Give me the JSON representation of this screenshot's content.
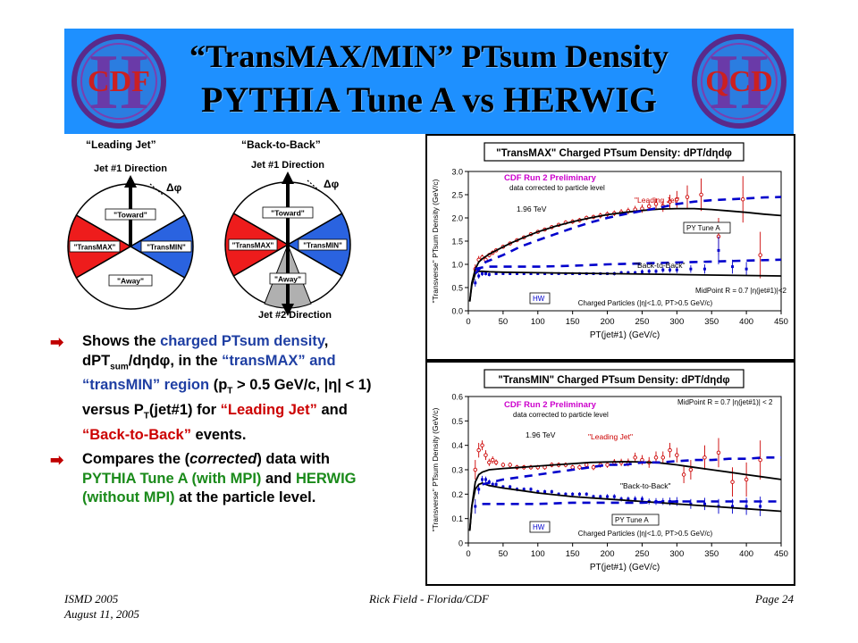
{
  "title": {
    "line1": "“TransMAX/MIN” PTsum Density",
    "line2": "PYTHIA Tune A vs HERWIG"
  },
  "logos": {
    "left": "CDF",
    "right": "QCD",
    "roman": "II"
  },
  "diagrams": {
    "leading_jet": {
      "caption": "“Leading Jet”",
      "direction_top": "Jet #1 Direction",
      "dphi": "Δφ",
      "toward": "\"Toward\"",
      "transmax": "\"TransMAX\"",
      "transmin": "\"TransMIN\"",
      "away": "\"Away\""
    },
    "back_to_back": {
      "caption": "“Back-to-Back”",
      "direction_top": "Jet #1 Direction",
      "direction_bottom": "Jet #2 Direction",
      "dphi": "Δφ",
      "toward": "\"Toward\"",
      "transmax": "\"TransMAX\"",
      "transmin": "\"TransMIN\"",
      "away": "\"Away\""
    }
  },
  "bullets": {
    "b1_a": "Shows the ",
    "b1_b": "charged PTsum density",
    "b1_c": ", dPT",
    "b1_sub": "sum",
    "b1_d": "/dηdφ, in the ",
    "b1_e": "“transMAX” and “transMIN” region",
    "b1_f": " (p",
    "b1_sub2": "T",
    "b1_g": " > 0.5 GeV/c, |η| < 1) versus P",
    "b1_sub3": "T",
    "b1_h": "(jet#1) for ",
    "b1_i": "“Leading Jet”",
    "b1_j": " and ",
    "b1_k": "“Back-to-Back”",
    "b1_l": " events.",
    "b2_a": "Compares the (",
    "b2_b": "corrected",
    "b2_c": ") data with ",
    "b2_d": "PYTHIA Tune A (with MPI)",
    "b2_e": " and ",
    "b2_f": "HERWIG (without MPI)",
    "b2_g": " at the particle level."
  },
  "footer": {
    "left1": "ISMD 2005",
    "left2": "August 11, 2005",
    "center": "Rick Field - Florida/CDF",
    "right": "Page 24"
  },
  "colors": {
    "banner": "#1e90ff",
    "data_red": "#cc0000",
    "pythia": "#000000",
    "herwig_blue": "#0000cc",
    "cdf_label": "#cc00cc"
  },
  "chart_data": [
    {
      "type": "line",
      "title": "\"TransMAX\" Charged PTsum Density: dPT/dηdφ",
      "xlabel": "PT(jet#1) (GeV/c)",
      "ylabel": "\"Transverse\" PTsum Density (GeV/c)",
      "xlim": [
        0,
        450
      ],
      "ylim": [
        0,
        3.0
      ],
      "xticks": [
        0,
        50,
        100,
        150,
        200,
        250,
        300,
        350,
        400,
        450
      ],
      "yticks": [
        0.0,
        0.5,
        1.0,
        1.5,
        2.0,
        2.5,
        3.0
      ],
      "ytick_labels": [
        "0.0",
        "0.5",
        "1.0",
        "1.5",
        "2.0",
        "2.5",
        "3.0"
      ],
      "legend": "none",
      "annotations": {
        "cdf": "CDF Run 2 Preliminary",
        "corrected": "data corrected to particle level",
        "energy": "1.96 TeV",
        "leading": "\"Leading Jet\"",
        "back": "\"Back-to-Back\"",
        "pytune": "PY Tune A",
        "hw": "HW",
        "midpoint": "MidPoint R = 0.7 |η(jet#1)|<2",
        "charged": "Charged Particles (|η|<1.0, PT>0.5 GeV/c)"
      },
      "series": [
        {
          "style": "data-red",
          "x": [
            10,
            15,
            20,
            25,
            30,
            35,
            40,
            50,
            60,
            70,
            80,
            90,
            100,
            110,
            120,
            130,
            140,
            150,
            160,
            170,
            180,
            190,
            200,
            210,
            220,
            230,
            240,
            250,
            260,
            270,
            280,
            290,
            300,
            315,
            335,
            360,
            395,
            420
          ],
          "y": [
            0.9,
            1.1,
            1.15,
            1.1,
            1.2,
            1.25,
            1.3,
            1.38,
            1.45,
            1.52,
            1.58,
            1.65,
            1.7,
            1.75,
            1.8,
            1.85,
            1.9,
            1.92,
            1.95,
            2.0,
            2.02,
            2.05,
            2.08,
            2.1,
            2.12,
            2.15,
            2.18,
            2.2,
            2.25,
            2.3,
            2.25,
            2.35,
            2.4,
            2.45,
            2.5,
            1.6,
            2.4,
            1.2
          ],
          "err": [
            0.1,
            0.08,
            0.06,
            0.05,
            0.05,
            0.05,
            0.04,
            0.04,
            0.04,
            0.04,
            0.04,
            0.04,
            0.04,
            0.04,
            0.04,
            0.04,
            0.05,
            0.05,
            0.05,
            0.05,
            0.05,
            0.06,
            0.06,
            0.06,
            0.07,
            0.07,
            0.08,
            0.09,
            0.1,
            0.12,
            0.12,
            0.15,
            0.18,
            0.25,
            0.35,
            0.4,
            0.5,
            0.5
          ]
        },
        {
          "style": "data-blue",
          "x": [
            10,
            15,
            20,
            25,
            30,
            40,
            50,
            60,
            70,
            80,
            90,
            100,
            110,
            120,
            130,
            140,
            150,
            160,
            170,
            180,
            190,
            200,
            210,
            220,
            230,
            240,
            250,
            260,
            270,
            280,
            290,
            300,
            320,
            340,
            360,
            380,
            400
          ],
          "y": [
            0.6,
            0.75,
            0.8,
            0.8,
            0.78,
            0.8,
            0.8,
            0.8,
            0.8,
            0.8,
            0.8,
            0.8,
            0.8,
            0.8,
            0.8,
            0.8,
            0.8,
            0.8,
            0.8,
            0.8,
            0.8,
            0.8,
            0.8,
            0.82,
            0.82,
            0.82,
            0.84,
            0.85,
            0.85,
            0.88,
            0.88,
            0.88,
            0.9,
            0.9,
            1.3,
            0.95,
            0.9
          ],
          "err": [
            0.08,
            0.06,
            0.05,
            0.04,
            0.04,
            0.03,
            0.03,
            0.03,
            0.03,
            0.03,
            0.03,
            0.03,
            0.03,
            0.03,
            0.03,
            0.03,
            0.03,
            0.03,
            0.03,
            0.03,
            0.03,
            0.03,
            0.04,
            0.04,
            0.04,
            0.04,
            0.05,
            0.05,
            0.05,
            0.06,
            0.06,
            0.07,
            0.08,
            0.1,
            0.3,
            0.15,
            0.15
          ]
        },
        {
          "style": "pythia-leading",
          "x": [
            2,
            5,
            10,
            15,
            20,
            30,
            40,
            60,
            80,
            100,
            125,
            150,
            175,
            200,
            225,
            250,
            275,
            300,
            325,
            350,
            375,
            400,
            425,
            450
          ],
          "y": [
            0.2,
            0.6,
            0.9,
            1.05,
            1.12,
            1.22,
            1.3,
            1.45,
            1.58,
            1.7,
            1.82,
            1.92,
            2.0,
            2.07,
            2.12,
            2.16,
            2.19,
            2.2,
            2.2,
            2.18,
            2.15,
            2.12,
            2.08,
            2.05
          ]
        },
        {
          "style": "pythia-b2b",
          "x": [
            2,
            5,
            10,
            15,
            20,
            30,
            50,
            100,
            150,
            200,
            250,
            300,
            350,
            400,
            450
          ],
          "y": [
            0.2,
            0.55,
            0.8,
            0.85,
            0.85,
            0.84,
            0.83,
            0.82,
            0.81,
            0.8,
            0.79,
            0.78,
            0.77,
            0.76,
            0.75
          ]
        },
        {
          "style": "herwig-leading",
          "x": [
            10,
            25,
            50,
            75,
            100,
            125,
            150,
            175,
            200,
            225,
            250,
            275,
            300,
            325,
            350,
            375,
            400,
            425,
            450
          ],
          "y": [
            0.8,
            1.05,
            1.2,
            1.38,
            1.52,
            1.65,
            1.78,
            1.9,
            2.0,
            2.08,
            2.15,
            2.22,
            2.3,
            2.35,
            2.38,
            2.4,
            2.42,
            2.44,
            2.45
          ]
        },
        {
          "style": "herwig-b2b",
          "x": [
            10,
            25,
            50,
            75,
            100,
            150,
            200,
            250,
            300,
            350,
            400,
            450
          ],
          "y": [
            0.9,
            0.95,
            0.95,
            0.95,
            0.95,
            0.97,
            1.0,
            1.02,
            1.04,
            1.06,
            1.08,
            1.1
          ]
        }
      ]
    },
    {
      "type": "line",
      "title": "\"TransMIN\" Charged PTsum Density: dPT/dηdφ",
      "xlabel": "PT(jet#1) (GeV/c)",
      "ylabel": "\"Transverse\" PTsum Density (GeV/c)",
      "xlim": [
        0,
        450
      ],
      "ylim": [
        0,
        0.6
      ],
      "xticks": [
        0,
        50,
        100,
        150,
        200,
        250,
        300,
        350,
        400,
        450
      ],
      "yticks": [
        0.0,
        0.1,
        0.2,
        0.3,
        0.4,
        0.5,
        0.6
      ],
      "ytick_labels": [
        "0",
        "0.1",
        "0.2",
        "0.3",
        "0.4",
        "0.5",
        "0.6"
      ],
      "legend": "none",
      "annotations": {
        "cdf": "CDF Run 2 Preliminary",
        "corrected": "data corrected to particle level",
        "energy": "1.96 TeV",
        "leading": "\"Leading Jet\"",
        "back": "\"Back-to-Back\"",
        "pytune": "PY Tune A",
        "hw": "HW",
        "midpoint": "MidPoint R = 0.7 |η(jet#1)| < 2",
        "charged": "Charged Particles (|η|<1.0, PT>0.5 GeV/c)"
      },
      "series": [
        {
          "style": "data-red",
          "x": [
            10,
            15,
            20,
            25,
            30,
            35,
            40,
            50,
            60,
            70,
            80,
            90,
            100,
            110,
            120,
            130,
            140,
            150,
            160,
            170,
            180,
            190,
            200,
            210,
            220,
            230,
            240,
            250,
            260,
            270,
            280,
            290,
            300,
            310,
            320,
            340,
            360,
            380,
            400,
            420
          ],
          "y": [
            0.3,
            0.38,
            0.4,
            0.36,
            0.33,
            0.34,
            0.33,
            0.32,
            0.32,
            0.31,
            0.31,
            0.31,
            0.31,
            0.31,
            0.32,
            0.32,
            0.32,
            0.31,
            0.31,
            0.32,
            0.31,
            0.32,
            0.32,
            0.33,
            0.33,
            0.33,
            0.35,
            0.34,
            0.33,
            0.35,
            0.35,
            0.38,
            0.36,
            0.28,
            0.3,
            0.35,
            0.37,
            0.25,
            0.26,
            0.34
          ],
          "err": [
            0.04,
            0.03,
            0.02,
            0.02,
            0.015,
            0.015,
            0.012,
            0.01,
            0.01,
            0.01,
            0.01,
            0.01,
            0.01,
            0.01,
            0.01,
            0.01,
            0.01,
            0.01,
            0.01,
            0.01,
            0.012,
            0.012,
            0.012,
            0.014,
            0.015,
            0.016,
            0.02,
            0.02,
            0.022,
            0.025,
            0.025,
            0.03,
            0.03,
            0.035,
            0.04,
            0.05,
            0.06,
            0.06,
            0.07,
            0.08
          ]
        },
        {
          "style": "data-blue",
          "x": [
            10,
            15,
            20,
            25,
            30,
            35,
            40,
            50,
            60,
            70,
            80,
            90,
            100,
            110,
            120,
            130,
            140,
            150,
            160,
            170,
            180,
            190,
            200,
            210,
            220,
            230,
            240,
            250,
            260,
            270,
            280,
            290,
            300,
            320,
            340,
            360,
            380,
            400,
            420
          ],
          "y": [
            0.15,
            0.22,
            0.26,
            0.26,
            0.25,
            0.24,
            0.24,
            0.23,
            0.23,
            0.22,
            0.22,
            0.22,
            0.21,
            0.21,
            0.21,
            0.2,
            0.2,
            0.2,
            0.2,
            0.2,
            0.19,
            0.19,
            0.19,
            0.19,
            0.18,
            0.18,
            0.18,
            0.18,
            0.17,
            0.17,
            0.17,
            0.17,
            0.17,
            0.16,
            0.16,
            0.15,
            0.15,
            0.15,
            0.15
          ],
          "err": [
            0.03,
            0.02,
            0.015,
            0.012,
            0.01,
            0.01,
            0.01,
            0.008,
            0.008,
            0.008,
            0.008,
            0.008,
            0.008,
            0.008,
            0.008,
            0.008,
            0.008,
            0.008,
            0.008,
            0.008,
            0.008,
            0.008,
            0.01,
            0.01,
            0.01,
            0.01,
            0.012,
            0.012,
            0.012,
            0.014,
            0.014,
            0.016,
            0.018,
            0.02,
            0.025,
            0.03,
            0.03,
            0.035,
            0.04
          ]
        },
        {
          "style": "pythia-leading",
          "x": [
            2,
            5,
            10,
            15,
            20,
            30,
            50,
            75,
            100,
            125,
            150,
            175,
            200,
            225,
            250,
            275,
            300,
            325,
            350,
            375,
            400,
            425,
            450
          ],
          "y": [
            0.05,
            0.15,
            0.25,
            0.28,
            0.29,
            0.3,
            0.305,
            0.31,
            0.315,
            0.32,
            0.325,
            0.33,
            0.332,
            0.333,
            0.332,
            0.328,
            0.32,
            0.31,
            0.3,
            0.29,
            0.28,
            0.27,
            0.26
          ]
        },
        {
          "style": "pythia-b2b",
          "x": [
            2,
            5,
            10,
            15,
            20,
            30,
            50,
            75,
            100,
            150,
            200,
            250,
            300,
            350,
            400,
            450
          ],
          "y": [
            0.05,
            0.15,
            0.22,
            0.24,
            0.245,
            0.235,
            0.225,
            0.215,
            0.205,
            0.19,
            0.18,
            0.17,
            0.16,
            0.15,
            0.14,
            0.13
          ]
        },
        {
          "style": "herwig-leading",
          "x": [
            20,
            50,
            75,
            100,
            125,
            150,
            175,
            200,
            225,
            250,
            275,
            300,
            325,
            350,
            375,
            400,
            425,
            450
          ],
          "y": [
            0.24,
            0.26,
            0.27,
            0.28,
            0.29,
            0.3,
            0.31,
            0.32,
            0.32,
            0.33,
            0.33,
            0.335,
            0.34,
            0.34,
            0.345,
            0.345,
            0.35,
            0.35
          ]
        },
        {
          "style": "herwig-b2b",
          "x": [
            20,
            50,
            100,
            150,
            200,
            250,
            300,
            350,
            400,
            450
          ],
          "y": [
            0.16,
            0.16,
            0.16,
            0.165,
            0.165,
            0.165,
            0.17,
            0.17,
            0.17,
            0.17
          ]
        }
      ]
    }
  ]
}
